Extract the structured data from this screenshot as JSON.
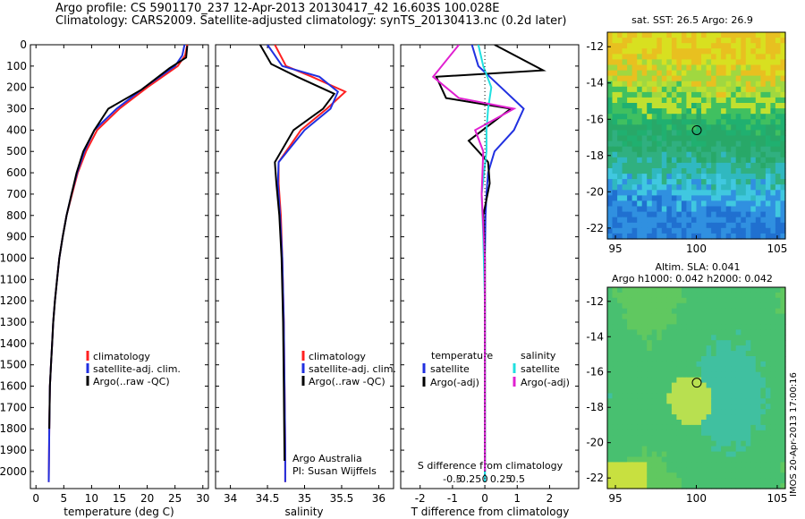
{
  "header": {
    "title": "Argo profile: CS 5901170_237 12-Apr-2013 20130417_42 16.603S 100.028E",
    "subtitle": "Climatology: CARS2009. Satellite-adjusted climatology: synTS_20130413.nc (0.2d later)"
  },
  "colors": {
    "clim": "#ff2020",
    "sat": "#2030e0",
    "argo": "#000000",
    "sat_s": "#20e0e0",
    "argo_s": "#e020d0"
  },
  "chart_data": [
    {
      "type": "line",
      "id": "temperature",
      "xlabel": "temperature (deg C)",
      "ylabel": "",
      "xlim": [
        -1,
        31
      ],
      "ylim": [
        2080,
        0
      ],
      "xticks": [
        0,
        5,
        10,
        15,
        20,
        25,
        30
      ],
      "yticks": [
        0,
        100,
        200,
        300,
        400,
        500,
        600,
        700,
        800,
        900,
        1000,
        1100,
        1200,
        1300,
        1400,
        1500,
        1600,
        1700,
        1800,
        1900,
        2000
      ],
      "legend": [
        "climatology",
        "satellite-adj. clim.",
        "Argo(..raw -QC)"
      ],
      "legend_position": "lower-right",
      "series": [
        {
          "name": "climatology",
          "color_key": "clim",
          "x": [
            27.2,
            26.8,
            25.5,
            20,
            15,
            11,
            9,
            7.5,
            6.5,
            5.5,
            4.8,
            4.2,
            3.8,
            3.4,
            3.1,
            2.9,
            2.7,
            2.5,
            2.4,
            2.3
          ],
          "y": [
            0,
            50,
            100,
            200,
            300,
            400,
            500,
            600,
            700,
            800,
            900,
            1000,
            1100,
            1200,
            1300,
            1400,
            1500,
            1600,
            1800,
            2050
          ]
        },
        {
          "name": "satellite-adj. clim.",
          "color_key": "sat",
          "x": [
            26.7,
            26.3,
            25,
            19.5,
            14.5,
            10.5,
            8.7,
            7.4,
            6.4,
            5.5,
            4.8,
            4.2,
            3.8,
            3.4,
            3.1,
            2.9,
            2.7,
            2.5,
            2.4,
            2.3
          ],
          "y": [
            0,
            50,
            100,
            200,
            300,
            400,
            500,
            600,
            700,
            800,
            900,
            1000,
            1100,
            1200,
            1300,
            1400,
            1500,
            1600,
            1800,
            2050
          ]
        },
        {
          "name": "Argo(..raw -QC)",
          "color_key": "argo",
          "x": [
            27.2,
            27.0,
            24,
            19,
            13,
            10.5,
            8.5,
            7.3,
            6.4,
            5.5,
            4.8,
            4.2,
            3.8,
            3.4,
            3.1,
            2.9,
            2.7,
            2.5,
            2.4
          ],
          "y": [
            5,
            60,
            110,
            210,
            300,
            400,
            500,
            600,
            700,
            800,
            900,
            1000,
            1100,
            1200,
            1300,
            1400,
            1500,
            1600,
            1800
          ]
        }
      ]
    },
    {
      "type": "line",
      "id": "salinity",
      "xlabel": "salinity",
      "xlim": [
        33.8,
        36.2
      ],
      "ylim": [
        2080,
        0
      ],
      "xticks": [
        34,
        34.5,
        35,
        35.5,
        36
      ],
      "legend": [
        "climatology",
        "satellite-adj. clim.",
        "Argo(..raw -QC)"
      ],
      "legend_position": "lower-right",
      "annotation": [
        "Argo Australia",
        "PI: Susan Wijffels"
      ],
      "series": [
        {
          "name": "climatology",
          "color_key": "clim",
          "x": [
            34.6,
            34.75,
            35.1,
            35.55,
            35.3,
            34.95,
            34.65,
            34.65,
            34.68,
            34.7,
            34.72,
            34.73,
            34.74,
            34.74
          ],
          "y": [
            0,
            100,
            150,
            220,
            300,
            400,
            550,
            650,
            800,
            1000,
            1300,
            1600,
            1900,
            2050
          ]
        },
        {
          "name": "satellite-adj. clim.",
          "color_key": "sat",
          "x": [
            34.5,
            34.7,
            35.2,
            35.45,
            35.35,
            35.0,
            34.65,
            34.64,
            34.67,
            34.7,
            34.72,
            34.73,
            34.74,
            34.74
          ],
          "y": [
            0,
            100,
            150,
            220,
            300,
            400,
            550,
            650,
            800,
            1000,
            1300,
            1600,
            1900,
            2050
          ]
        },
        {
          "name": "Argo(..raw -QC)",
          "color_key": "argo",
          "x": [
            34.4,
            34.55,
            34.9,
            35.4,
            35.25,
            34.85,
            34.6,
            34.62,
            34.66,
            34.69,
            34.71,
            34.72,
            34.73
          ],
          "y": [
            0,
            90,
            150,
            230,
            300,
            400,
            550,
            650,
            800,
            1000,
            1300,
            1600,
            1950
          ]
        }
      ]
    },
    {
      "type": "line",
      "id": "difference",
      "xlabel": "T difference from climatology",
      "xlabel_top": "S difference from climatology",
      "xlim": [
        -2.6,
        2.9
      ],
      "ylim": [
        2080,
        0
      ],
      "xticks": [
        -2,
        -1,
        0,
        1,
        2
      ],
      "sticks": [
        "-0.5",
        "-0.25",
        "0",
        "0.25",
        "0.5"
      ],
      "legend": [
        "temperature",
        "satellite",
        "Argo(-adj)",
        "salinity",
        "satellite",
        "Argo(-adj)"
      ],
      "series": [
        {
          "name": "satellite",
          "color_key": "sat",
          "x": [
            -0.4,
            -0.2,
            0.5,
            1.2,
            0.9,
            0.3,
            0.1,
            0.05,
            0.02,
            0,
            0,
            0
          ],
          "y": [
            0,
            100,
            200,
            300,
            400,
            500,
            600,
            700,
            800,
            1000,
            1500,
            2050
          ]
        },
        {
          "name": "Argo(-adj)",
          "color_key": "argo",
          "x": [
            0.3,
            1.8,
            -1.5,
            -1.2,
            0.8,
            -0.5,
            0.1,
            0.15,
            -0.05,
            0,
            0
          ],
          "y": [
            0,
            120,
            150,
            250,
            300,
            450,
            550,
            650,
            800,
            1000,
            2000
          ]
        },
        {
          "name": "satellite",
          "color_key": "sat_s",
          "x": [
            -0.2,
            -0.05,
            0.2,
            0.1,
            0.05,
            0.05,
            -0.1,
            -0.05,
            0,
            0
          ],
          "y": [
            0,
            100,
            200,
            300,
            400,
            500,
            700,
            900,
            1200,
            2050
          ]
        },
        {
          "name": "Argo(-adj)",
          "color_key": "argo_s",
          "x": [
            -0.8,
            -1.6,
            -0.8,
            0.9,
            -0.3,
            -0.05,
            -0.1,
            0,
            0
          ],
          "y": [
            0,
            150,
            250,
            300,
            400,
            500,
            700,
            1000,
            2000
          ]
        }
      ]
    },
    {
      "type": "heatmap",
      "id": "sst_map",
      "title": "sat. SST: 26.5 Argo: 26.9",
      "xlim": [
        94.5,
        105.5
      ],
      "ylim": [
        -22.6,
        -11.2
      ],
      "xticks": [
        95,
        100,
        105
      ],
      "yticks": [
        -12,
        -14,
        -16,
        -18,
        -20,
        -22
      ],
      "marker": {
        "lon": 100.028,
        "lat": -16.603
      }
    },
    {
      "type": "heatmap",
      "id": "sla_map",
      "title": [
        "Altim. SLA: 0.041",
        "Argo h1000: 0.042 h2000: 0.042"
      ],
      "xlim": [
        94.5,
        105.5
      ],
      "ylim": [
        -22.6,
        -11.2
      ],
      "xticks": [
        95,
        100,
        105
      ],
      "yticks": [
        -12,
        -14,
        -16,
        -18,
        -20,
        -22
      ],
      "marker": {
        "lon": 100.028,
        "lat": -16.603
      }
    }
  ],
  "footer": {
    "stamp": "IMOS 20-Apr-2013 17:00:16"
  }
}
